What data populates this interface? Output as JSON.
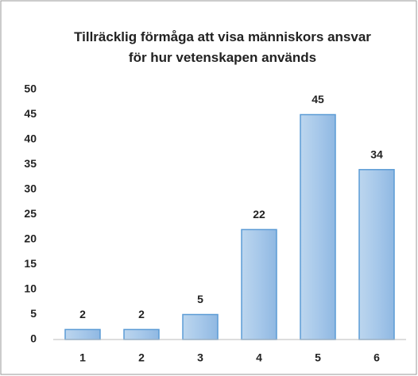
{
  "chart_data": {
    "type": "bar",
    "title": "Tillräcklig förmåga att visa människors ansvar för hur vetenskapen används",
    "categories": [
      "1",
      "2",
      "3",
      "4",
      "5",
      "6"
    ],
    "values": [
      2,
      2,
      5,
      22,
      45,
      34
    ],
    "color": "#9dc3e6",
    "ylim": [
      0,
      50
    ],
    "yticks": [
      0,
      5,
      10,
      15,
      20,
      25,
      30,
      35,
      40,
      45,
      50
    ],
    "grid": false
  }
}
